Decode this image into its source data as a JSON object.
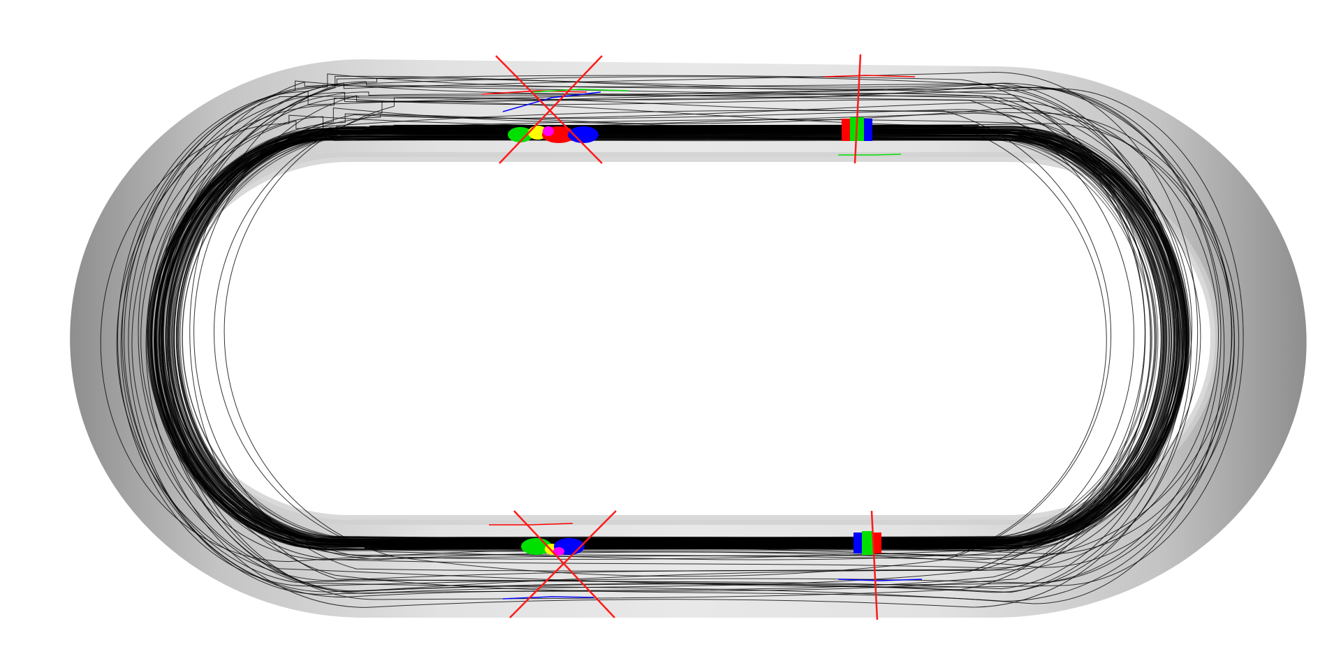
{
  "scene": {
    "description_visible_text": "",
    "colors": {
      "background": "#ffffff",
      "track_light": "#e4e4e4",
      "track_dark": "#8e8e8e",
      "trajectories": "#000000",
      "markers": "#ff1a1a",
      "highlight_red": "#ff0000",
      "highlight_green": "#00e000",
      "highlight_blue": "#0000ff",
      "highlight_yellow": "#ffff00"
    },
    "crossing_markers": [
      {
        "shape": "x",
        "side": "top"
      },
      {
        "shape": "line",
        "side": "top"
      },
      {
        "shape": "x",
        "side": "bottom"
      },
      {
        "shape": "line",
        "side": "bottom"
      }
    ],
    "trajectory_bundle": {
      "dense_lines": 90,
      "scattered_lines": 26
    }
  }
}
